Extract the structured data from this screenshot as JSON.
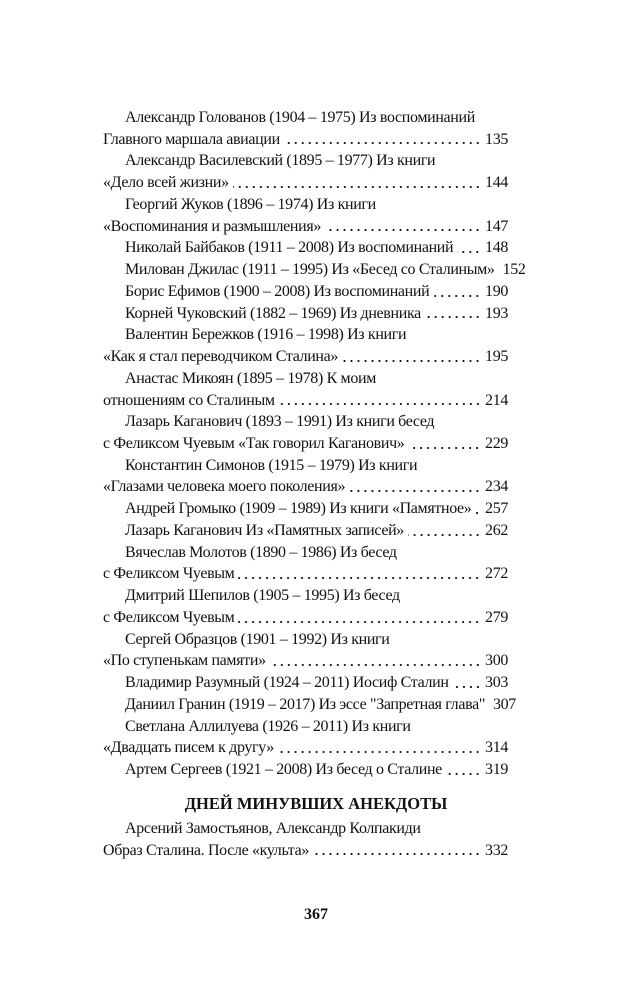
{
  "entries": [
    {
      "lines": [
        "Александр Голованов (1904 – 1975) Из воспоминаний",
        "Главного маршала авиации"
      ],
      "page": "135"
    },
    {
      "lines": [
        "Александр Василевский (1895 – 1977) Из книги",
        "«Дело всей жизни»"
      ],
      "page": "144"
    },
    {
      "lines": [
        "Георгий Жуков (1896 – 1974) Из книги",
        "«Воспоминания и размышления»"
      ],
      "page": "147"
    },
    {
      "lines": [
        "Николай Байбаков (1911 – 2008) Из воспоминаний"
      ],
      "page": "148"
    },
    {
      "lines": [
        "Милован Джилас (1911 – 1995) Из «Бесед со Сталиным»"
      ],
      "page": "152"
    },
    {
      "lines": [
        "Борис Ефимов (1900 – 2008) Из воспоминаний"
      ],
      "page": "190"
    },
    {
      "lines": [
        "Корней Чуковский (1882 – 1969) Из дневника"
      ],
      "page": "193"
    },
    {
      "lines": [
        "Валентин Бережков (1916 – 1998) Из книги",
        "«Как я стал переводчиком Сталина»"
      ],
      "page": "195"
    },
    {
      "lines": [
        "Анастас Микоян (1895 – 1978) К моим",
        "отношениям со Сталиным"
      ],
      "page": "214"
    },
    {
      "lines": [
        "Лазарь Каганович (1893 – 1991) Из книги бесед",
        "с Феликсом Чуевым «Так говорил Каганович»"
      ],
      "page": "229"
    },
    {
      "lines": [
        "Константин Симонов (1915 – 1979) Из книги",
        "«Глазами человека моего поколения»"
      ],
      "page": "234"
    },
    {
      "lines": [
        "Андрей Громыко (1909 – 1989) Из книги «Памятное»"
      ],
      "page": "257"
    },
    {
      "lines": [
        "Лазарь Каганович Из «Памятных записей»"
      ],
      "page": "262"
    },
    {
      "lines": [
        "Вячеслав Молотов (1890 – 1986) Из бесед",
        "с Феликсом Чуевым"
      ],
      "page": "272"
    },
    {
      "lines": [
        "Дмитрий Шепилов (1905 – 1995) Из бесед",
        "с Феликсом Чуевым"
      ],
      "page": "279"
    },
    {
      "lines": [
        "Сергей Образцов (1901 – 1992) Из книги",
        "«По ступенькам памяти»"
      ],
      "page": "300"
    },
    {
      "lines": [
        "Владимир Разумный (1924 – 2011) Иосиф Сталин"
      ],
      "page": "303"
    },
    {
      "lines": [
        "Даниил Гранин (1919 – 2017) Из эссе \"Запретная глава\""
      ],
      "page": "307"
    },
    {
      "lines": [
        "Светлана Аллилуева (1926 – 2011) Из книги",
        "«Двадцать писем к другу»"
      ],
      "page": "314"
    },
    {
      "lines": [
        "Артем Сергеев (1921 – 2008) Из бесед о Сталине"
      ],
      "page": "319"
    }
  ],
  "section": {
    "title": "ДНЕЙ МИНУВШИХ АНЕКДОТЫ",
    "entries": [
      {
        "lines": [
          "Арсений Замостьянов, Александр Колпакиди",
          "Образ Сталина. После «культа»"
        ],
        "page": "332"
      }
    ]
  },
  "page_number": "367"
}
